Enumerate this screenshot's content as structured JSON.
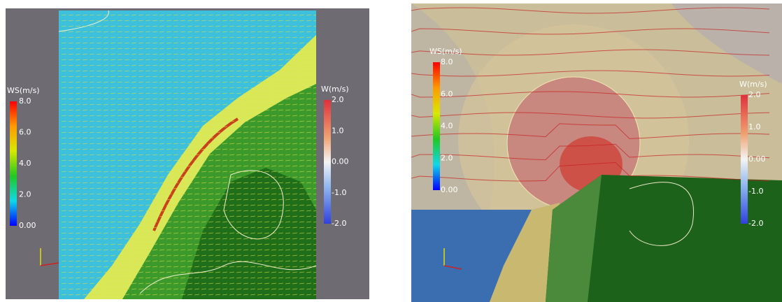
{
  "panels": [
    {
      "colorbars": [
        {
          "title": "WS(m/s)",
          "ticks": [
            "8.0",
            "6.0",
            "4.0",
            "2.0",
            "0.00"
          ]
        },
        {
          "title": "W(m/s)",
          "ticks": [
            "2.0",
            "1.0",
            "0.00",
            "-1.0",
            "-2.0"
          ]
        }
      ]
    },
    {
      "colorbars": [
        {
          "title": "WS(m/s)",
          "ticks": [
            "8.0",
            "6.0",
            "4.0",
            "2.0",
            "0.00"
          ]
        },
        {
          "title": "W(m/s)",
          "ticks": [
            "2.0",
            "1.0",
            "0.00",
            "-1.0",
            "-2.0"
          ]
        }
      ]
    }
  ]
}
